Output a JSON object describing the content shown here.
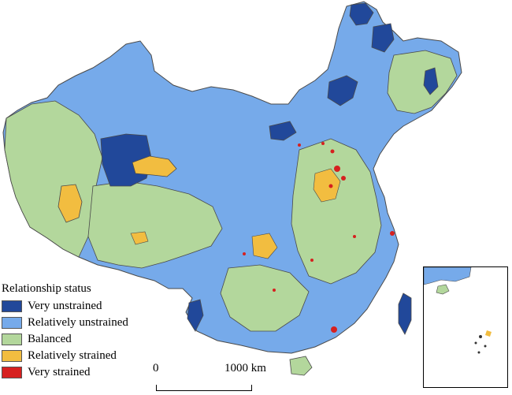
{
  "legend": {
    "title": "Relationship status",
    "items": [
      {
        "label": "Very unstrained",
        "color": "#21489a"
      },
      {
        "label": "Relatively unstrained",
        "color": "#76aaea"
      },
      {
        "label": "Balanced",
        "color": "#b3d79c"
      },
      {
        "label": "Relatively strained",
        "color": "#f2bd40"
      },
      {
        "label": "Very strained",
        "color": "#d6201f"
      }
    ]
  },
  "scale_bar": {
    "zero_label": "0",
    "max_label": "1000 km"
  },
  "colors": {
    "boundary": "#4a4a4a",
    "ocean": "#ffffff"
  }
}
